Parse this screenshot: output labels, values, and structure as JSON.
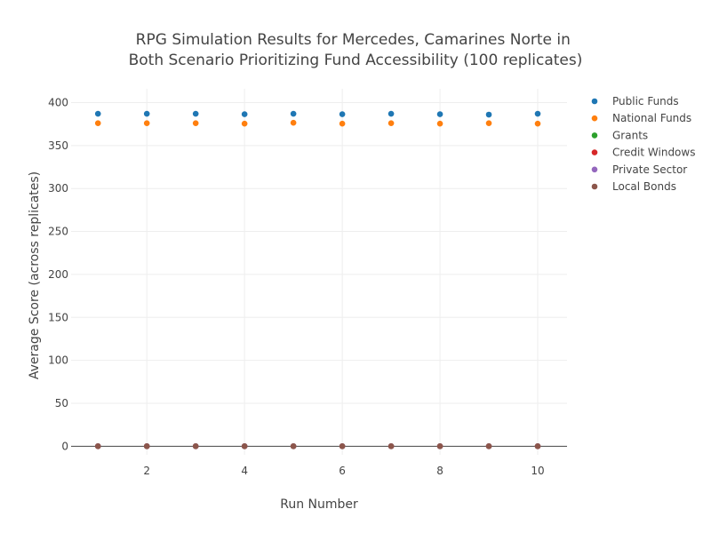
{
  "chart_data": {
    "type": "scatter",
    "title_lines": [
      "RPG Simulation Results for Mercedes, Camarines Norte in",
      "Both Scenario Prioritizing Fund Accessibility (100 replicates)"
    ],
    "xlabel": "Run Number",
    "ylabel": "Average Score (across replicates)",
    "x": [
      1,
      2,
      3,
      4,
      5,
      6,
      7,
      8,
      9,
      10
    ],
    "xlim": [
      0.45,
      10.6
    ],
    "ylim": [
      -10,
      416
    ],
    "x_ticks": [
      2,
      4,
      6,
      8,
      10
    ],
    "y_ticks": [
      0,
      50,
      100,
      150,
      200,
      250,
      300,
      350,
      400
    ],
    "grid": true,
    "legend_position": "top-right",
    "series": [
      {
        "name": "Public Funds",
        "color": "#1f77b4",
        "values": [
          387,
          387,
          387,
          386.5,
          387,
          386.5,
          387,
          386.5,
          386,
          387
        ]
      },
      {
        "name": "National Funds",
        "color": "#ff7f0e",
        "values": [
          376,
          376,
          376,
          375.5,
          376.5,
          375.5,
          376,
          375.5,
          376,
          375.5
        ]
      },
      {
        "name": "Grants",
        "color": "#2ca02c",
        "values": [
          0,
          0,
          0,
          0,
          0,
          0,
          0,
          0,
          0,
          0
        ]
      },
      {
        "name": "Credit Windows",
        "color": "#d62728",
        "values": [
          0,
          0,
          0,
          0,
          0,
          0,
          0,
          0,
          0,
          0
        ]
      },
      {
        "name": "Private Sector",
        "color": "#9467bd",
        "values": [
          0,
          0,
          0,
          0,
          0,
          0,
          0,
          0,
          0,
          0
        ]
      },
      {
        "name": "Local Bonds",
        "color": "#8c564b",
        "values": [
          0,
          0,
          0,
          0,
          0,
          0,
          0,
          0,
          0,
          0
        ]
      }
    ]
  }
}
